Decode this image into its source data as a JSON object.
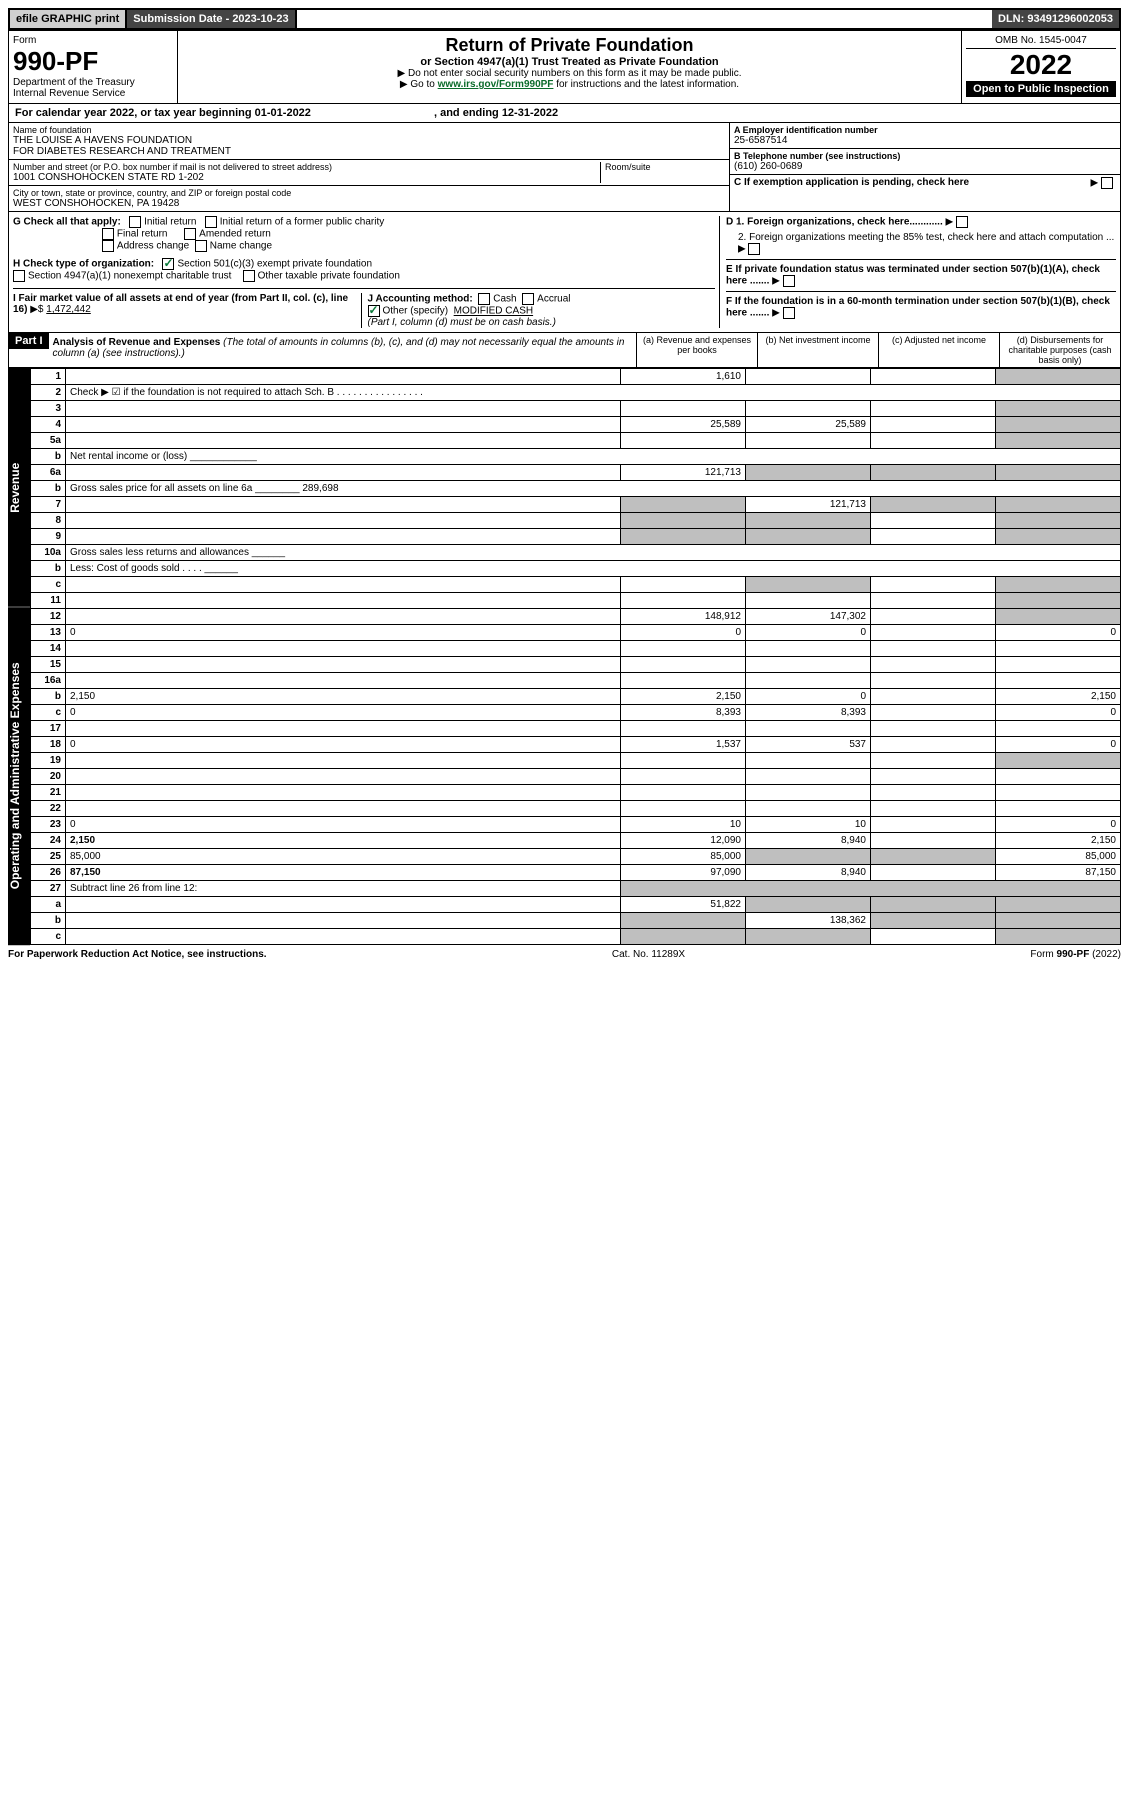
{
  "topbar": {
    "efile": "efile GRAPHIC print",
    "subdate_label": "Submission Date - 2023-10-23",
    "dln": "DLN: 93491296002053"
  },
  "header": {
    "form_word": "Form",
    "form_num": "990-PF",
    "dept": "Department of the Treasury",
    "irs": "Internal Revenue Service",
    "title": "Return of Private Foundation",
    "subtitle": "or Section 4947(a)(1) Trust Treated as Private Foundation",
    "note1": "▶ Do not enter social security numbers on this form as it may be made public.",
    "note2_pre": "▶ Go to ",
    "note2_link": "www.irs.gov/Form990PF",
    "note2_post": " for instructions and the latest information.",
    "omb": "OMB No. 1545-0047",
    "year": "2022",
    "open": "Open to Public Inspection"
  },
  "calyear": {
    "text_a": "For calendar year 2022, or tax year beginning 01-01-2022",
    "text_b": ", and ending 12-31-2022"
  },
  "foundation": {
    "name_label": "Name of foundation",
    "name1": "THE LOUISE A HAVENS FOUNDATION",
    "name2": "FOR DIABETES RESEARCH AND TREATMENT",
    "addr_label": "Number and street (or P.O. box number if mail is not delivered to street address)",
    "addr": "1001 CONSHOHOCKEN STATE RD 1-202",
    "room_label": "Room/suite",
    "city_label": "City or town, state or province, country, and ZIP or foreign postal code",
    "city": "WEST CONSHOHOCKEN, PA  19428",
    "ein_label": "A Employer identification number",
    "ein": "25-6587514",
    "tel_label": "B Telephone number (see instructions)",
    "tel": "(610) 260-0689",
    "c_label": "C If exemption application is pending, check here",
    "d1": "D 1. Foreign organizations, check here............",
    "d2": "2. Foreign organizations meeting the 85% test, check here and attach computation ...",
    "e": "E  If private foundation status was terminated under section 507(b)(1)(A), check here .......",
    "f": "F  If the foundation is in a 60-month termination under section 507(b)(1)(B), check here .......",
    "g_label": "G Check all that apply:",
    "g_initial": "Initial return",
    "g_initial_former": "Initial return of a former public charity",
    "g_final": "Final return",
    "g_amended": "Amended return",
    "g_addr": "Address change",
    "g_name": "Name change",
    "h_label": "H Check type of organization:",
    "h_501c3": "Section 501(c)(3) exempt private foundation",
    "h_4947": "Section 4947(a)(1) nonexempt charitable trust",
    "h_other": "Other taxable private foundation",
    "i_label": "I Fair market value of all assets at end of year (from Part II, col. (c), line 16)",
    "i_val": "1,472,442",
    "j_label": "J Accounting method:",
    "j_cash": "Cash",
    "j_accrual": "Accrual",
    "j_other": "Other (specify)",
    "j_other_val": "MODIFIED CASH",
    "j_note": "(Part I, column (d) must be on cash basis.)"
  },
  "part1": {
    "label": "Part I",
    "title": "Analysis of Revenue and Expenses",
    "title_note": " (The total of amounts in columns (b), (c), and (d) may not necessarily equal the amounts in column (a) (see instructions).)",
    "cols": {
      "a": "(a) Revenue and expenses per books",
      "b": "(b) Net investment income",
      "c": "(c) Adjusted net income",
      "d": "(d) Disbursements for charitable purposes (cash basis only)"
    }
  },
  "sections": {
    "revenue": "Revenue",
    "opadmin": "Operating and Administrative Expenses"
  },
  "rows": [
    {
      "n": "1",
      "d": "",
      "a": "1,610",
      "b": "",
      "c": "",
      "dgrey": true
    },
    {
      "n": "2",
      "d": "Check ▶ ☑ if the foundation is not required to attach Sch. B   .  .  .  .  .  .  .  .  .  .  .  .  .  .  .  .",
      "nocells": true
    },
    {
      "n": "3",
      "d": "",
      "a": "",
      "b": "",
      "c": "",
      "dgrey": true
    },
    {
      "n": "4",
      "d": "",
      "a": "25,589",
      "b": "25,589",
      "c": "",
      "dgrey": true
    },
    {
      "n": "5a",
      "d": "",
      "a": "",
      "b": "",
      "c": "",
      "dgrey": true
    },
    {
      "n": "b",
      "d": "Net rental income or (loss)  ____________",
      "nocells": true
    },
    {
      "n": "6a",
      "d": "",
      "a": "121,713",
      "b": "",
      "c": "",
      "bgrey": true,
      "cgrey": true,
      "dgrey": true
    },
    {
      "n": "b",
      "d": "Gross sales price for all assets on line 6a ________ 289,698",
      "nocells": true
    },
    {
      "n": "7",
      "d": "",
      "a": "",
      "b": "121,713",
      "c": "",
      "agrey": true,
      "cgrey": true,
      "dgrey": true
    },
    {
      "n": "8",
      "d": "",
      "a": "",
      "b": "",
      "c": "",
      "agrey": true,
      "bgrey": true,
      "dgrey": true
    },
    {
      "n": "9",
      "d": "",
      "a": "",
      "b": "",
      "c": "",
      "agrey": true,
      "bgrey": true,
      "dgrey": true
    },
    {
      "n": "10a",
      "d": "Gross sales less returns and allowances  ______",
      "nocells": true
    },
    {
      "n": "b",
      "d": "Less: Cost of goods sold   .   .   .   .  ______",
      "nocells": true
    },
    {
      "n": "c",
      "d": "",
      "a": "",
      "b": "",
      "c": "",
      "bgrey": true,
      "dgrey": true
    },
    {
      "n": "11",
      "d": "",
      "a": "",
      "b": "",
      "c": "",
      "dgrey": true
    },
    {
      "n": "12",
      "d": "",
      "a": "148,912",
      "b": "147,302",
      "c": "",
      "dgrey": true,
      "bold": true
    },
    {
      "n": "13",
      "d": "0",
      "a": "0",
      "b": "0",
      "c": "",
      "sec": "op"
    },
    {
      "n": "14",
      "d": "",
      "a": "",
      "b": "",
      "c": ""
    },
    {
      "n": "15",
      "d": "",
      "a": "",
      "b": "",
      "c": ""
    },
    {
      "n": "16a",
      "d": "",
      "a": "",
      "b": "",
      "c": ""
    },
    {
      "n": "b",
      "d": "2,150",
      "a": "2,150",
      "b": "0",
      "c": ""
    },
    {
      "n": "c",
      "d": "0",
      "a": "8,393",
      "b": "8,393",
      "c": ""
    },
    {
      "n": "17",
      "d": "",
      "a": "",
      "b": "",
      "c": ""
    },
    {
      "n": "18",
      "d": "0",
      "a": "1,537",
      "b": "537",
      "c": ""
    },
    {
      "n": "19",
      "d": "",
      "a": "",
      "b": "",
      "c": "",
      "dgrey": true
    },
    {
      "n": "20",
      "d": "",
      "a": "",
      "b": "",
      "c": ""
    },
    {
      "n": "21",
      "d": "",
      "a": "",
      "b": "",
      "c": ""
    },
    {
      "n": "22",
      "d": "",
      "a": "",
      "b": "",
      "c": ""
    },
    {
      "n": "23",
      "d": "0",
      "a": "10",
      "b": "10",
      "c": ""
    },
    {
      "n": "24",
      "d": "2,150",
      "a": "12,090",
      "b": "8,940",
      "c": "",
      "bold": true
    },
    {
      "n": "25",
      "d": "85,000",
      "a": "85,000",
      "b": "",
      "c": "",
      "bgrey": true,
      "cgrey": true
    },
    {
      "n": "26",
      "d": "87,150",
      "a": "97,090",
      "b": "8,940",
      "c": "",
      "bold": true
    },
    {
      "n": "27",
      "d": "Subtract line 26 from line 12:",
      "nocells_grey": true
    },
    {
      "n": "a",
      "d": "",
      "a": "51,822",
      "b": "",
      "c": "",
      "bgrey": true,
      "cgrey": true,
      "dgrey": true,
      "bold": true
    },
    {
      "n": "b",
      "d": "",
      "a": "",
      "b": "138,362",
      "c": "",
      "agrey": true,
      "cgrey": true,
      "dgrey": true,
      "bold": true
    },
    {
      "n": "c",
      "d": "",
      "a": "",
      "b": "",
      "c": "",
      "agrey": true,
      "bgrey": true,
      "dgrey": true,
      "bold": true
    }
  ],
  "footer": {
    "left": "For Paperwork Reduction Act Notice, see instructions.",
    "mid": "Cat. No. 11289X",
    "right": "Form 990-PF (2022)"
  }
}
